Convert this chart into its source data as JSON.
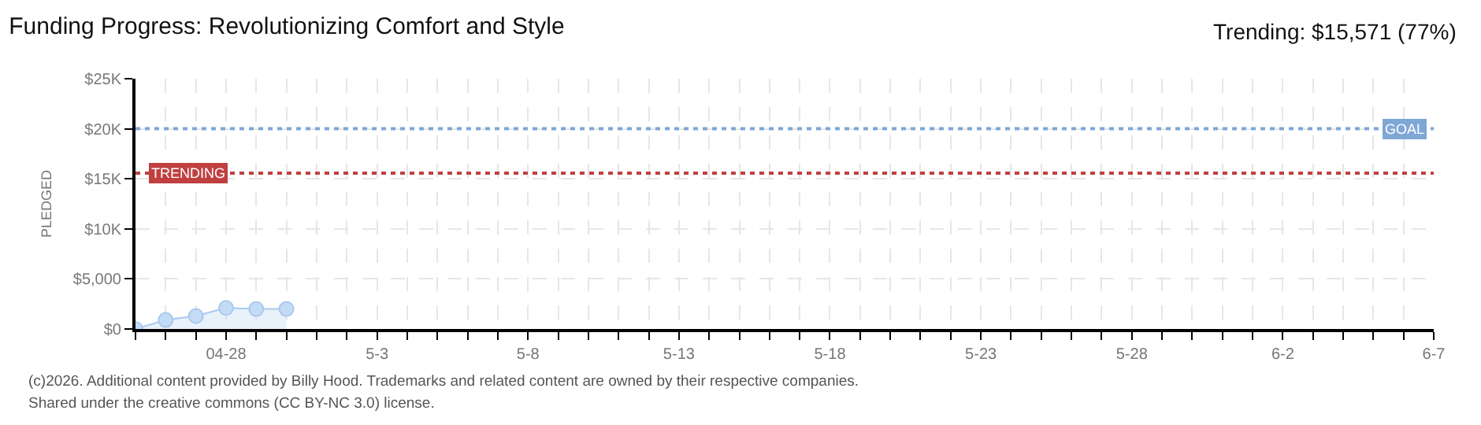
{
  "chart_data": {
    "type": "area",
    "title": "Funding Progress: Revolutionizing Comfort and Style",
    "ylabel": "PLEDGED",
    "x": [
      "--04-25",
      "--04-26",
      "--04-27",
      "--04-28",
      "--04-29",
      "--04-30"
    ],
    "series": [
      {
        "color": "#a9c9ee",
        "values": [
          0,
          900,
          1300,
          2100,
          2000,
          2000
        ]
      }
    ],
    "marker": "circle",
    "grid": true,
    "xlim": [
      "--04-25",
      "--06-07"
    ],
    "xticks": [
      {
        "value": "--04-25",
        "label": null
      },
      {
        "value": "--04-26",
        "label": null
      },
      {
        "value": "--04-27",
        "label": null
      },
      {
        "value": "--04-28",
        "label": "04-28"
      },
      {
        "value": "--04-29",
        "label": null
      },
      {
        "value": "--04-30",
        "label": null
      },
      {
        "value": "--05-01",
        "label": null
      },
      {
        "value": "--05-02",
        "label": null
      },
      {
        "value": "--05-03",
        "label": "5-3"
      },
      {
        "value": "--05-04",
        "label": null
      },
      {
        "value": "--05-05",
        "label": null
      },
      {
        "value": "--05-06",
        "label": null
      },
      {
        "value": "--05-07",
        "label": null
      },
      {
        "value": "--05-08",
        "label": "5-8"
      },
      {
        "value": "--05-09",
        "label": null
      },
      {
        "value": "--05-10",
        "label": null
      },
      {
        "value": "--05-11",
        "label": null
      },
      {
        "value": "--05-12",
        "label": null
      },
      {
        "value": "--05-13",
        "label": "5-13"
      },
      {
        "value": "--05-14",
        "label": null
      },
      {
        "value": "--05-15",
        "label": null
      },
      {
        "value": "--05-16",
        "label": null
      },
      {
        "value": "--05-17",
        "label": null
      },
      {
        "value": "--05-18",
        "label": "5-18"
      },
      {
        "value": "--05-19",
        "label": null
      },
      {
        "value": "--05-20",
        "label": null
      },
      {
        "value": "--05-21",
        "label": null
      },
      {
        "value": "--05-22",
        "label": null
      },
      {
        "value": "--05-23",
        "label": "5-23"
      },
      {
        "value": "--05-24",
        "label": null
      },
      {
        "value": "--05-25",
        "label": null
      },
      {
        "value": "--05-26",
        "label": null
      },
      {
        "value": "--05-27",
        "label": null
      },
      {
        "value": "--05-28",
        "label": "5-28"
      },
      {
        "value": "--05-29",
        "label": null
      },
      {
        "value": "--05-30",
        "label": null
      },
      {
        "value": "--05-31",
        "label": null
      },
      {
        "value": "--06-01",
        "label": null
      },
      {
        "value": "--06-02",
        "label": "6-2"
      },
      {
        "value": "--06-03",
        "label": null
      },
      {
        "value": "--06-04",
        "label": null
      },
      {
        "value": "--06-05",
        "label": null
      },
      {
        "value": "--06-06",
        "label": null
      },
      {
        "value": "--06-07",
        "label": "6-7"
      }
    ],
    "ylim": [
      0,
      25000
    ],
    "yticks": [
      {
        "value": 0,
        "label": "$0"
      },
      {
        "value": 5000,
        "label": "$5,000"
      },
      {
        "value": 10000,
        "label": "$10K"
      },
      {
        "value": 15000,
        "label": "$15K"
      },
      {
        "value": 20000,
        "label": "$20K"
      },
      {
        "value": 25000,
        "label": "$25K"
      }
    ],
    "ref_lines": [
      {
        "axis": "y",
        "value": 20000,
        "label": "GOAL",
        "color": "#7fa7d6",
        "line_style": "dotted"
      },
      {
        "axis": "y",
        "value": 15571,
        "label": "TRENDING",
        "color": "#c04040",
        "line_style": "dotted"
      }
    ],
    "annotations": [
      "Trending: $15,571 (77%)",
      "(c)2026. Additional content provided by Billy Hood. Trademarks and related content are owned by their respective companies.",
      "Shared under the creative commons (CC BY-NC 3.0) license."
    ]
  }
}
